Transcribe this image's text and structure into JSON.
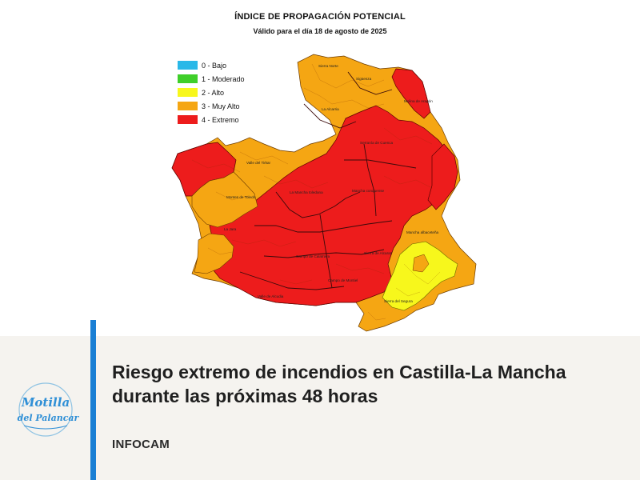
{
  "map": {
    "title": "ÍNDICE DE PROPAGACIÓN POTENCIAL",
    "subtitle": "Válido para el día 18 de agosto de 2025",
    "legend": [
      {
        "label": "0 - Bajo",
        "color": "#29b8e8"
      },
      {
        "label": "1 - Moderado",
        "color": "#3fcf2a"
      },
      {
        "label": "2 - Alto",
        "color": "#f7f71c"
      },
      {
        "label": "3 - Muy Alto",
        "color": "#f5a613"
      },
      {
        "label": "4 - Extremo",
        "color": "#ed1c1c"
      }
    ],
    "region_labels": [
      "Serranía de Cuenca",
      "La Mancha toledana",
      "Mancha conquense",
      "Montes de Toledo",
      "Campo de Calatrava",
      "Sierra de Alcaraz",
      "Sierra del Segura",
      "La Alcarria",
      "Sigüenza",
      "Molina de Aragón",
      "Sierra Norte",
      "Valle del Tiétar",
      "La Jara",
      "Campo de Montiel",
      "Valle de Alcudia",
      "Mancha albaceteña"
    ]
  },
  "article": {
    "headline": "Riesgo extremo de incendios en Castilla-La Mancha durante las próximas 48 horas",
    "source": "INFOCAM"
  },
  "logo": {
    "line1": "Motilla",
    "line2": "del Palancar"
  }
}
